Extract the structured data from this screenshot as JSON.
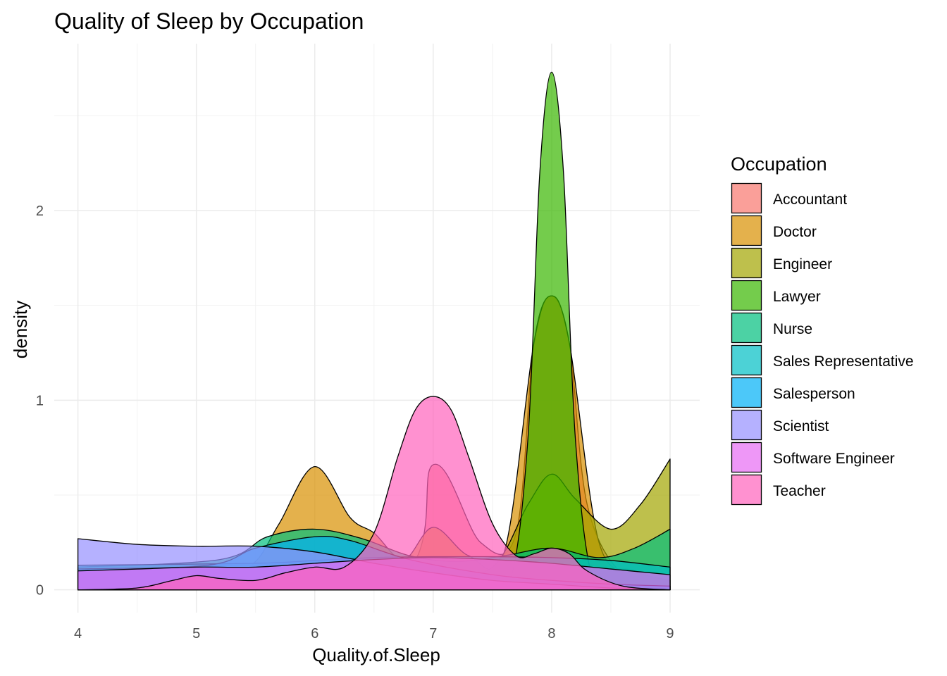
{
  "chart_data": {
    "type": "area",
    "subtype": "density",
    "title": "Quality of Sleep by Occupation",
    "xlabel": "Quality.of.Sleep",
    "ylabel": "density",
    "xlim": [
      3.8,
      9.25
    ],
    "ylim": [
      -0.12,
      2.88
    ],
    "x_ticks": [
      4,
      5,
      6,
      7,
      8,
      9
    ],
    "y_ticks": [
      0,
      1,
      2
    ],
    "grid": true,
    "fill_opacity": 0.7,
    "legend": {
      "title": "Occupation",
      "position": "right"
    },
    "series": [
      {
        "name": "Accountant",
        "color": "#F8766D",
        "x": [
          4,
          6.6,
          7,
          7.4,
          7.7,
          7.85,
          8,
          8.15,
          8.3,
          8.6,
          9
        ],
        "y": [
          0,
          0.02,
          0.66,
          0.25,
          0.3,
          1.3,
          1.55,
          1.3,
          0.45,
          0.08,
          0.02
        ]
      },
      {
        "name": "Doctor",
        "color": "#D89000",
        "x": [
          4,
          5.3,
          5.5,
          5.7,
          6,
          6.3,
          6.5,
          6.75,
          7,
          7.3,
          7.6,
          7.85,
          8,
          8.15,
          8.4,
          8.7,
          9
        ],
        "y": [
          0.1,
          0.13,
          0.15,
          0.35,
          0.65,
          0.38,
          0.3,
          0.16,
          0.33,
          0.18,
          0.2,
          1.3,
          1.55,
          1.3,
          0.25,
          0.1,
          0.05
        ]
      },
      {
        "name": "Engineer",
        "color": "#A3A500",
        "x": [
          4,
          6.5,
          7,
          7.5,
          7.8,
          8,
          8.2,
          8.5,
          8.75,
          9
        ],
        "y": [
          0,
          0.02,
          0.05,
          0.12,
          0.45,
          0.61,
          0.48,
          0.32,
          0.45,
          0.69
        ]
      },
      {
        "name": "Lawyer",
        "color": "#39B600",
        "x": [
          4,
          7.4,
          7.65,
          7.8,
          7.9,
          8,
          8.1,
          8.2,
          8.35,
          8.6,
          9
        ],
        "y": [
          0,
          0,
          0.05,
          0.8,
          2.2,
          2.73,
          2.2,
          0.8,
          0.05,
          0,
          0
        ]
      },
      {
        "name": "Nurse",
        "color": "#00BF7D",
        "x": [
          4,
          5.2,
          5.6,
          6,
          6.4,
          6.8,
          7.2,
          7.6,
          8,
          8.4,
          8.7,
          9
        ],
        "y": [
          0.12,
          0.16,
          0.28,
          0.32,
          0.27,
          0.18,
          0.15,
          0.18,
          0.22,
          0.17,
          0.22,
          0.32
        ]
      },
      {
        "name": "Sales Representative",
        "color": "#00BFC4",
        "x": [
          4,
          5.5,
          6,
          6.5,
          7,
          7.5,
          8,
          8.5,
          9
        ],
        "y": [
          0.13,
          0.14,
          0.155,
          0.17,
          0.175,
          0.175,
          0.17,
          0.155,
          0.12
        ]
      },
      {
        "name": "Salesperson",
        "color": "#00B0F6",
        "x": [
          4,
          5.1,
          5.5,
          6,
          6.3,
          6.8,
          7.5,
          8,
          8.5,
          9
        ],
        "y": [
          0.11,
          0.13,
          0.22,
          0.28,
          0.26,
          0.16,
          0.08,
          0.05,
          0.03,
          0.02
        ]
      },
      {
        "name": "Scientist",
        "color": "#9590FF",
        "x": [
          4,
          4.5,
          5,
          5.5,
          6,
          6.5,
          7,
          7.5,
          8,
          8.5,
          9
        ],
        "y": [
          0.27,
          0.24,
          0.23,
          0.23,
          0.2,
          0.14,
          0.09,
          0.05,
          0.03,
          0.01,
          0
        ]
      },
      {
        "name": "Software Engineer",
        "color": "#E76BF3",
        "x": [
          4,
          4.5,
          5,
          5.5,
          6,
          6.5,
          7,
          7.5,
          8,
          8.5,
          9
        ],
        "y": [
          0.1,
          0.11,
          0.12,
          0.12,
          0.14,
          0.16,
          0.17,
          0.16,
          0.14,
          0.11,
          0.08
        ]
      },
      {
        "name": "Teacher",
        "color": "#FF62BC",
        "x": [
          4,
          4.5,
          4.8,
          5,
          5.2,
          5.5,
          5.75,
          6,
          6.25,
          6.5,
          6.7,
          6.85,
          7,
          7.15,
          7.3,
          7.5,
          7.7,
          7.85,
          8,
          8.15,
          8.3,
          8.6,
          9
        ],
        "y": [
          0,
          0.01,
          0.05,
          0.075,
          0.06,
          0.05,
          0.09,
          0.12,
          0.12,
          0.3,
          0.7,
          0.95,
          1.02,
          0.95,
          0.7,
          0.35,
          0.18,
          0.19,
          0.22,
          0.19,
          0.1,
          0.02,
          0
        ]
      }
    ]
  }
}
